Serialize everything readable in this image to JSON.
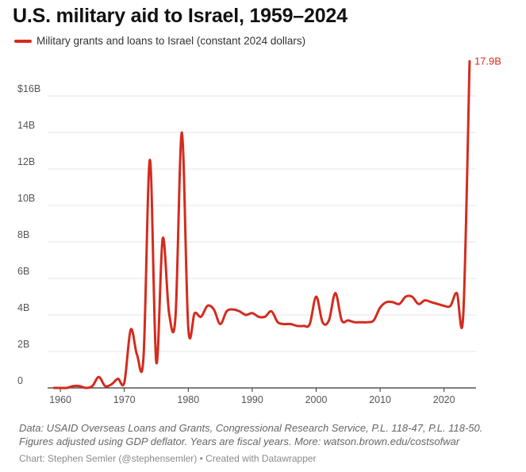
{
  "colors": {
    "series": "#d42b1e",
    "grid": "#e6e6e6",
    "axis": "#333333"
  },
  "chart_data": {
    "type": "line",
    "title": "U.S. military aid to Israel, 1959–2024",
    "legend": "top-left",
    "grid": true,
    "xlim": [
      1958,
      2025
    ],
    "ylim": [
      0,
      18
    ],
    "x_ticks": [
      1960,
      1970,
      1980,
      1990,
      2000,
      2010,
      2020
    ],
    "y_ticks": [
      0,
      2,
      4,
      6,
      8,
      10,
      12,
      14,
      16
    ],
    "y_tick_labels": [
      "0",
      "2B",
      "4B",
      "6B",
      "8B",
      "10B",
      "12B",
      "14B",
      "$16B"
    ],
    "end_label": "17.9B",
    "series": [
      {
        "name": "Military grants and loans to Israel (constant 2024 dollars)",
        "x": [
          1959,
          1960,
          1961,
          1962,
          1963,
          1964,
          1965,
          1966,
          1967,
          1968,
          1969,
          1970,
          1971,
          1972,
          1973,
          1974,
          1975,
          1976,
          1977,
          1978,
          1979,
          1980,
          1981,
          1982,
          1983,
          1984,
          1985,
          1986,
          1987,
          1988,
          1989,
          1990,
          1991,
          1992,
          1993,
          1994,
          1995,
          1996,
          1997,
          1998,
          1999,
          2000,
          2001,
          2002,
          2003,
          2004,
          2005,
          2006,
          2007,
          2008,
          2009,
          2010,
          2011,
          2012,
          2013,
          2014,
          2015,
          2016,
          2017,
          2018,
          2019,
          2020,
          2021,
          2022,
          2023,
          2024
        ],
        "values": [
          0.0,
          0.0,
          0.0,
          0.1,
          0.1,
          0.0,
          0.1,
          0.6,
          0.1,
          0.2,
          0.5,
          0.3,
          3.2,
          1.8,
          1.7,
          12.5,
          1.4,
          8.2,
          4.1,
          3.9,
          14.0,
          3.3,
          4.1,
          3.9,
          4.5,
          4.3,
          3.5,
          4.2,
          4.3,
          4.2,
          4.0,
          4.1,
          3.9,
          3.9,
          4.2,
          3.6,
          3.5,
          3.5,
          3.4,
          3.4,
          3.5,
          5.0,
          3.6,
          3.7,
          5.2,
          3.7,
          3.7,
          3.6,
          3.6,
          3.6,
          3.7,
          4.4,
          4.7,
          4.7,
          4.6,
          5.0,
          5.0,
          4.6,
          4.8,
          4.7,
          4.6,
          4.5,
          4.5,
          5.2,
          4.0,
          17.9
        ]
      }
    ]
  },
  "notes": {
    "line1": "Data: USAID Overseas Loans and Grants, Congressional Research Service, P.L. 118-47, P.L. 118-50.",
    "line2": "Figures adjusted using GDP deflator. Years are fiscal years. More: watson.brown.edu/costsofwar"
  },
  "byline": "Chart: Stephen Semler (@stephensemler) • Created with Datawrapper"
}
